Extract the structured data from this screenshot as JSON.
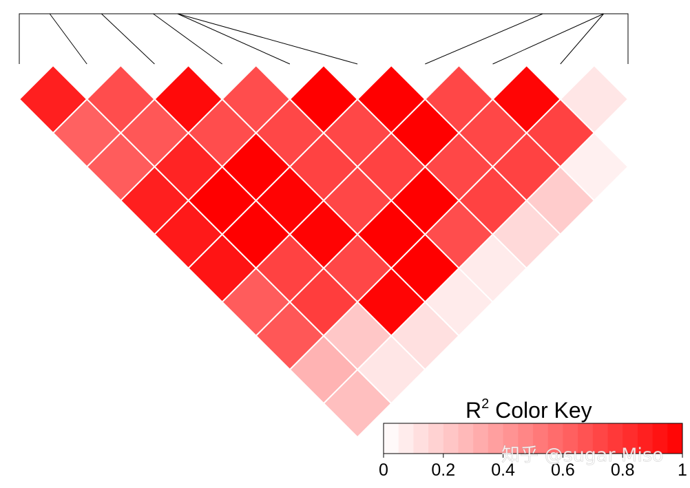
{
  "chart_data": {
    "type": "heatmap",
    "title": "",
    "marker_count": 10,
    "ld_matrix_r2": [
      [
        0.88,
        0.62,
        0.72,
        0.7,
        0.82,
        0.8,
        0.85,
        0.68,
        0.35,
        0.28
      ],
      [
        0.64,
        0.74,
        0.94,
        0.92,
        0.9,
        0.78,
        0.62,
        0.6,
        0.22
      ],
      [
        1.0,
        0.96,
        0.95,
        0.74,
        0.72,
        0.88,
        0.08
      ],
      [
        0.7,
        0.72,
        0.86,
        1.0,
        0.96,
        0.14
      ],
      [
        0.74,
        1.0,
        1.0,
        0.2
      ],
      [
        0.99,
        0.66,
        0.1
      ]
    ],
    "diagonals": [
      [
        0.88,
        0.7,
        0.96,
        0.7,
        1.0,
        1.0,
        0.72,
        0.98,
        0.1
      ],
      [
        0.62,
        0.66,
        0.7,
        0.72,
        0.72,
        1.0,
        0.72,
        0.74,
        0.05
      ],
      [
        0.64,
        0.86,
        1.0,
        0.74,
        0.74,
        0.72,
        0.74,
        0.06
      ],
      [
        0.88,
        1.0,
        0.99,
        0.72,
        1.0,
        0.74,
        0.2
      ],
      [
        0.9,
        1.0,
        0.99,
        1.0,
        0.7,
        0.15
      ],
      [
        0.92,
        0.74,
        0.72,
        1.0,
        0.08
      ],
      [
        0.64,
        0.76,
        0.98,
        0.08
      ],
      [
        0.66,
        0.22,
        0.12
      ],
      [
        0.3,
        0.1
      ],
      [
        0.25
      ]
    ],
    "color_key": {
      "title": "R",
      "title_superscript": "2",
      "title_suffix": " Color Key",
      "range": [
        0,
        1
      ],
      "ticks": [
        "0",
        "0.2",
        "0.4",
        "0.6",
        "0.8",
        "1"
      ],
      "tick_values": [
        0,
        0.2,
        0.4,
        0.6,
        0.8,
        1.0
      ],
      "bins": 20,
      "low_color": "#ffffff",
      "high_color": "#ff0000"
    },
    "grid": false,
    "legend_position": "bottom-right"
  },
  "watermark": "知乎 @sugar Miso"
}
